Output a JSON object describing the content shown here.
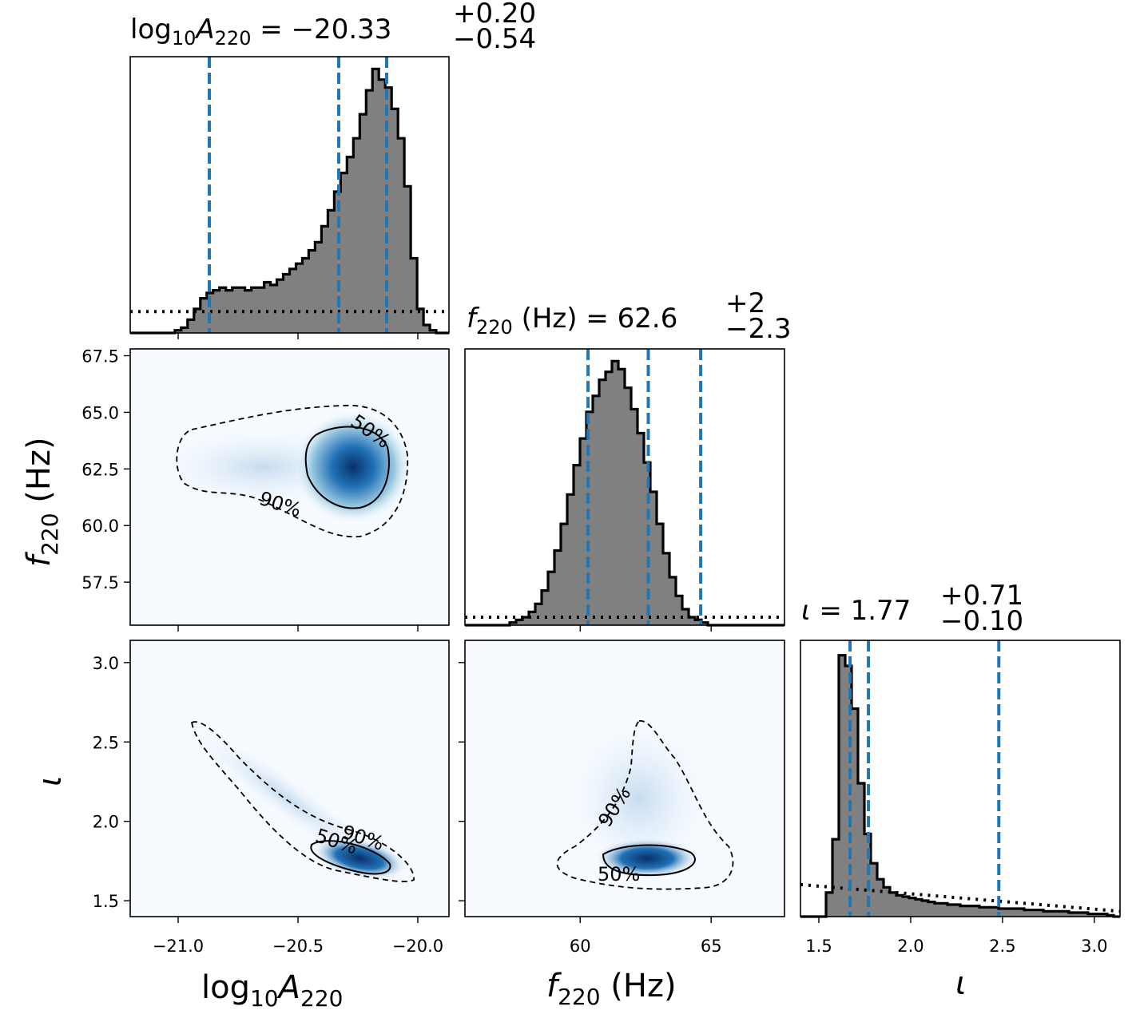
{
  "chart_data": {
    "type": "corner",
    "parameters": [
      {
        "id": "logA",
        "label_main": "log",
        "label_sub": "10",
        "label_var": "A",
        "label_varsub": "220",
        "range": [
          -21.2,
          -19.87
        ],
        "ticks": [
          -21.0,
          -20.5,
          -20.0
        ],
        "tick_labels": [
          "−21.0",
          "−20.5",
          "−20.0"
        ]
      },
      {
        "id": "f",
        "label_var": "f",
        "label_varsub": "220",
        "label_unit": " (Hz)",
        "range": [
          55.6,
          67.8
        ],
        "ticks_x": [
          60,
          65
        ],
        "tick_labels_x": [
          "60",
          "65"
        ],
        "ticks_y": [
          57.5,
          60.0,
          62.5,
          65.0,
          67.5
        ],
        "tick_labels_y": [
          "57.5",
          "60.0",
          "62.5",
          "65.0",
          "67.5"
        ]
      },
      {
        "id": "iota",
        "label_var": "ι",
        "range": [
          1.4,
          3.14
        ],
        "ticks": [
          1.5,
          2.0,
          2.5,
          3.0
        ],
        "tick_labels": [
          "1.5",
          "2.0",
          "2.5",
          "3.0"
        ],
        "ticks_y": [
          1.5,
          2.0,
          2.5,
          3.0
        ],
        "tick_labels_y": [
          "1.5",
          "2.0",
          "2.5",
          "3.0"
        ]
      }
    ],
    "titles": [
      {
        "var": "log",
        "sub1": "10",
        "var2": "A",
        "sub2": "220",
        "median": " = −20.33",
        "plus": "+0.20",
        "minus": "−0.54"
      },
      {
        "var": "f",
        "sub1": "220",
        "unit": " (Hz) = 62.6",
        "plus": "+2",
        "minus": "−2.3"
      },
      {
        "var": "ι",
        "median": " = 1.77",
        "plus": "+0.71",
        "minus": "−0.10"
      }
    ],
    "quantile_lines": {
      "logA": [
        -20.87,
        -20.33,
        -20.13
      ],
      "f": [
        60.3,
        62.6,
        64.6
      ],
      "iota": [
        1.67,
        1.77,
        2.48
      ]
    },
    "histograms": {
      "logA": {
        "edges_start": -21.2,
        "bin_width": 0.0266,
        "heights": [
          0,
          0,
          0,
          0,
          0,
          0,
          0,
          0.01,
          0.02,
          0.05,
          0.09,
          0.13,
          0.15,
          0.16,
          0.17,
          0.16,
          0.17,
          0.17,
          0.16,
          0.17,
          0.17,
          0.19,
          0.18,
          0.2,
          0.22,
          0.24,
          0.26,
          0.28,
          0.31,
          0.34,
          0.4,
          0.46,
          0.53,
          0.6,
          0.66,
          0.73,
          0.82,
          0.91,
          0.99,
          0.95,
          0.92,
          0.84,
          0.73,
          0.55,
          0.28,
          0.09,
          0.03,
          0.01,
          0,
          0
        ]
      },
      "f": {
        "edges_start": 55.6,
        "bin_width": 0.244,
        "heights": [
          0,
          0,
          0,
          0,
          0,
          0,
          0,
          0.01,
          0.02,
          0.03,
          0.05,
          0.08,
          0.13,
          0.2,
          0.28,
          0.38,
          0.49,
          0.6,
          0.7,
          0.8,
          0.86,
          0.92,
          0.95,
          0.99,
          0.96,
          0.89,
          0.81,
          0.72,
          0.61,
          0.5,
          0.38,
          0.27,
          0.18,
          0.11,
          0.06,
          0.03,
          0.02,
          0.01,
          0,
          0,
          0,
          0,
          0,
          0,
          0,
          0,
          0,
          0,
          0,
          0
        ]
      },
      "iota": {
        "edges_start": 1.4,
        "bin_width": 0.0348,
        "heights": [
          0,
          0,
          0,
          0,
          0.09,
          0.29,
          0.98,
          0.94,
          0.78,
          0.5,
          0.31,
          0.2,
          0.14,
          0.11,
          0.09,
          0.08,
          0.075,
          0.07,
          0.065,
          0.06,
          0.055,
          0.05,
          0.05,
          0.045,
          0.045,
          0.04,
          0.04,
          0.04,
          0.035,
          0.035,
          0.035,
          0.03,
          0.03,
          0.03,
          0.03,
          0.025,
          0.025,
          0.025,
          0.02,
          0.02,
          0.02,
          0.02,
          0.015,
          0.015,
          0.015,
          0.01,
          0.01,
          0.01,
          0.005,
          0
        ]
      }
    },
    "priors": {
      "logA": 0.08,
      "f": 0.03,
      "iota_start": 0.12,
      "iota_end": 0.02
    },
    "contour_labels": [
      "50%",
      "90%"
    ],
    "colors": {
      "hist_fill": "#808080",
      "hist_edge": "#000000",
      "quantile": "#1f77b4",
      "density": "#08306b",
      "density_bg": "#f7fbff"
    }
  }
}
